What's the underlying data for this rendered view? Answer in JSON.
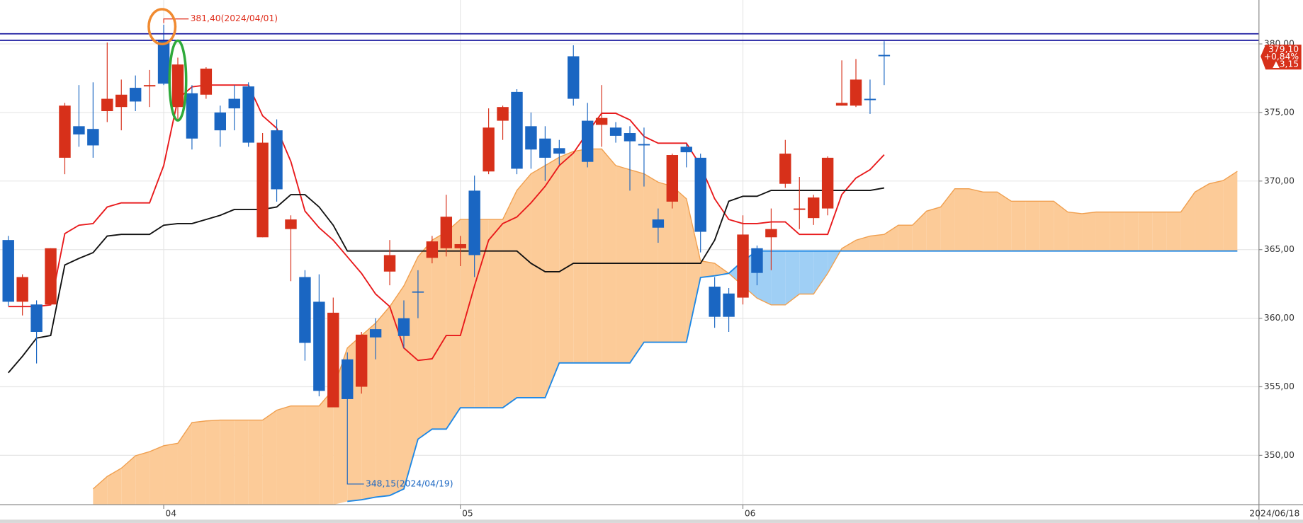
{
  "chart_data": {
    "type": "candlestick",
    "categories": [
      null,
      null,
      null,
      null,
      null,
      null,
      null,
      null,
      null,
      null,
      null,
      "04",
      null,
      null,
      null,
      null,
      null,
      null,
      null,
      null,
      null,
      null,
      null,
      null,
      null,
      null,
      null,
      null,
      null,
      null,
      null,
      null,
      "05",
      null,
      null,
      null,
      null,
      null,
      null,
      null,
      null,
      null,
      null,
      null,
      null,
      null,
      null,
      null,
      null,
      null,
      null,
      null,
      "06",
      null,
      null,
      null,
      null,
      null,
      null,
      null,
      null,
      null,
      null,
      null,
      null,
      null,
      null,
      null,
      null,
      null,
      null,
      null,
      null,
      null,
      null,
      null,
      null,
      null,
      null,
      null,
      null,
      null,
      null,
      null,
      null,
      null,
      null,
      null
    ],
    "open": [
      365.7,
      361.2,
      361.0,
      361.0,
      371.7,
      374.0,
      373.8,
      375.1,
      375.4,
      376.8,
      376.9,
      380.3,
      375.4,
      376.4,
      376.3,
      375.0,
      376.0,
      376.9,
      365.9,
      373.7,
      366.5,
      363.0,
      361.2,
      353.5,
      357.0,
      355.0,
      359.2,
      363.4,
      360.0,
      361.95,
      364.4,
      365.1,
      365.1,
      369.3,
      370.7,
      374.4,
      376.5,
      374.0,
      373.1,
      372.4,
      379.1,
      374.4,
      374.1,
      373.9,
      373.5,
      372.7,
      367.2,
      368.5,
      372.5,
      371.7,
      362.3,
      361.8,
      361.5,
      365.1,
      365.9,
      369.8,
      367.9,
      367.3,
      368.0,
      375.5,
      375.5,
      376.0,
      379.2,
      null,
      null,
      null,
      null,
      null,
      null,
      null,
      null,
      null,
      null,
      null,
      null,
      null,
      null,
      null,
      null,
      null,
      null,
      null,
      null,
      null,
      null,
      null,
      null,
      null
    ],
    "high": [
      366.0,
      363.2,
      361.3,
      365.1,
      375.7,
      377.0,
      377.2,
      380.1,
      377.4,
      377.7,
      378.1,
      381.4,
      379.0,
      377.0,
      378.3,
      375.5,
      377.0,
      377.2,
      373.5,
      374.5,
      367.5,
      363.5,
      363.2,
      361.5,
      357.5,
      359.0,
      360.0,
      365.7,
      361.3,
      363.5,
      366.0,
      369.0,
      366.0,
      370.4,
      375.3,
      375.5,
      376.7,
      375.0,
      374.0,
      373.0,
      379.9,
      375.7,
      377.0,
      374.3,
      374.0,
      373.9,
      368.0,
      372.0,
      372.7,
      372.0,
      363.0,
      362.2,
      367.5,
      365.3,
      368.0,
      373.0,
      370.3,
      369.0,
      371.8,
      378.8,
      378.9,
      377.4,
      380.2,
      null,
      null,
      null,
      null,
      null,
      null,
      null,
      null,
      null,
      null,
      null,
      null,
      null,
      null,
      null,
      null,
      null,
      null,
      null,
      null,
      null,
      null,
      null,
      null,
      null
    ],
    "low": [
      360.9,
      360.2,
      356.7,
      361.0,
      370.5,
      372.5,
      371.7,
      374.3,
      373.7,
      375.1,
      375.4,
      377.0,
      374.5,
      372.3,
      376.0,
      372.5,
      373.7,
      372.5,
      365.9,
      368.5,
      362.7,
      356.9,
      354.3,
      353.5,
      348.15,
      354.5,
      357.0,
      362.4,
      357.8,
      360.0,
      364.0,
      364.5,
      363.8,
      363.0,
      370.5,
      373.0,
      370.5,
      370.9,
      370.0,
      371.2,
      375.5,
      371.0,
      372.5,
      372.8,
      369.3,
      369.6,
      365.5,
      368.0,
      371.0,
      364.8,
      359.3,
      359.0,
      361.0,
      362.4,
      363.5,
      369.5,
      366.5,
      366.8,
      367.5,
      375.5,
      375.4,
      374.9,
      377.0,
      null,
      null,
      null,
      null,
      null,
      null,
      null,
      null,
      null,
      null,
      null,
      null,
      null,
      null,
      null,
      null,
      null,
      null,
      null,
      null,
      null,
      null,
      null,
      null,
      null
    ],
    "close": [
      361.2,
      363.0,
      359.0,
      365.1,
      375.5,
      373.4,
      372.6,
      376.0,
      376.3,
      375.8,
      377.0,
      377.1,
      378.5,
      373.1,
      378.2,
      373.7,
      375.3,
      372.8,
      372.8,
      369.4,
      367.2,
      358.2,
      354.7,
      360.4,
      354.1,
      358.8,
      358.6,
      364.6,
      358.7,
      361.9,
      365.6,
      367.4,
      365.4,
      364.6,
      373.9,
      375.4,
      370.9,
      372.3,
      371.7,
      372.0,
      376.0,
      371.4,
      374.6,
      373.3,
      372.9,
      372.6,
      366.6,
      371.9,
      372.1,
      366.3,
      360.1,
      360.1,
      366.1,
      363.3,
      366.5,
      372.0,
      368.0,
      368.8,
      371.7,
      375.7,
      377.4,
      375.9,
      379.1,
      null,
      null,
      null,
      null,
      null,
      null,
      null,
      null,
      null,
      null,
      null,
      null,
      null,
      null,
      null,
      null,
      null,
      null,
      null,
      null,
      null,
      null,
      null,
      null,
      null
    ],
    "up_color": "#d7301a",
    "down_color": "#1a66c2",
    "lines": [
      {
        "color": "#e8191b",
        "values": [
          360.85,
          360.85,
          360.85,
          360.97,
          366.17,
          366.78,
          366.9,
          368.11,
          368.41,
          368.41,
          368.41,
          371.13,
          375.97,
          376.87,
          377.0,
          377.0,
          377.0,
          377.0,
          374.76,
          373.85,
          371.43,
          367.81,
          366.6,
          365.69,
          364.48,
          363.27,
          361.76,
          360.85,
          357.83,
          356.92,
          357.04,
          358.74,
          358.74,
          362.36,
          365.69,
          366.9,
          367.38,
          368.41,
          369.62,
          371.13,
          372.04,
          373.55,
          374.94,
          374.94,
          374.46,
          373.25,
          372.76,
          372.76,
          372.76,
          371.13,
          368.71,
          367.2,
          366.9,
          366.9,
          367.02,
          367.02,
          366.11,
          366.11,
          366.11,
          369.01,
          370.22,
          370.83,
          371.92,
          null,
          null,
          null,
          null,
          null,
          null,
          null,
          null,
          null,
          null,
          null,
          null,
          null,
          null,
          null,
          null,
          null,
          null,
          null,
          null,
          null,
          null,
          null,
          null,
          null
        ]
      },
      {
        "color": "#111111",
        "values": [
          356.02,
          357.22,
          358.55,
          358.74,
          363.88,
          364.36,
          364.78,
          365.99,
          366.11,
          366.11,
          366.11,
          366.78,
          366.9,
          366.9,
          367.2,
          367.5,
          367.93,
          367.93,
          367.93,
          368.11,
          369.01,
          369.01,
          368.11,
          366.78,
          364.9,
          364.9,
          364.9,
          364.9,
          364.9,
          364.9,
          364.9,
          364.9,
          364.9,
          364.9,
          364.9,
          364.9,
          364.9,
          364.0,
          363.39,
          363.39,
          364.0,
          364.0,
          364.0,
          364.0,
          364.0,
          364.0,
          364.0,
          364.0,
          364.0,
          364.0,
          365.69,
          368.53,
          368.89,
          368.89,
          369.32,
          369.32,
          369.32,
          369.32,
          369.32,
          369.32,
          369.32,
          369.32,
          369.5,
          null,
          null,
          null,
          null,
          null,
          null,
          null,
          null,
          null,
          null,
          null,
          null,
          null,
          null,
          null,
          null,
          null,
          null,
          null,
          null,
          null,
          null,
          null,
          null,
          null
        ]
      }
    ],
    "cloud": {
      "span_a": {
        "color": "#f0a050",
        "values": [
          null,
          null,
          null,
          null,
          null,
          null,
          347.55,
          348.46,
          349.06,
          349.97,
          350.27,
          350.7,
          350.88,
          352.39,
          352.51,
          352.57,
          352.57,
          352.57,
          352.57,
          353.29,
          353.6,
          353.6,
          353.6,
          354.81,
          357.83,
          358.74,
          359.64,
          360.85,
          362.36,
          364.48,
          365.69,
          366.29,
          367.2,
          367.2,
          367.2,
          367.2,
          369.32,
          370.53,
          371.13,
          371.74,
          372.16,
          372.34,
          372.34,
          371.13,
          370.83,
          370.53,
          369.92,
          369.62,
          368.71,
          364.18,
          364.0,
          363.27,
          362.36,
          361.46,
          360.97,
          360.97,
          361.76,
          361.76,
          363.27,
          365.08,
          365.69,
          365.99,
          366.11,
          366.78,
          366.78,
          367.81,
          368.11,
          369.44,
          369.44,
          369.2,
          369.2,
          368.53,
          368.53,
          368.53,
          368.53,
          367.74,
          367.62,
          367.74,
          367.74,
          367.74,
          367.74,
          367.74,
          367.74,
          367.74,
          369.2,
          369.8,
          370.04,
          370.71
        ]
      },
      "span_b": {
        "color": "#1e88e5",
        "values": [
          null,
          null,
          null,
          null,
          null,
          null,
          null,
          null,
          null,
          null,
          null,
          null,
          null,
          null,
          null,
          null,
          null,
          null,
          null,
          null,
          null,
          null,
          null,
          null,
          346.64,
          346.76,
          346.95,
          347.07,
          347.55,
          351.18,
          351.91,
          351.91,
          353.47,
          353.47,
          353.47,
          353.47,
          354.2,
          354.2,
          354.2,
          356.74,
          356.74,
          356.74,
          356.74,
          356.74,
          356.74,
          358.25,
          358.25,
          358.25,
          358.25,
          362.97,
          363.09,
          363.27,
          364.18,
          364.9,
          364.9,
          364.9,
          364.9,
          364.9,
          364.9,
          364.9,
          364.9,
          364.9,
          364.9,
          364.9,
          364.9,
          364.9,
          364.9,
          364.9,
          364.9,
          364.9,
          364.9,
          364.9,
          364.9,
          364.9,
          364.9,
          364.9,
          364.9,
          364.9,
          364.9,
          364.9,
          364.9,
          364.9,
          364.9,
          364.9,
          364.9,
          364.9,
          364.9,
          364.9
        ]
      },
      "fill_above": "#fccb98",
      "fill_below": "#9fcff5"
    },
    "hlines": [
      {
        "value": 380.74,
        "color": "#1c1ca0"
      },
      {
        "value": 380.26,
        "color": "#1c1ca0"
      }
    ],
    "high_label": {
      "value": 381.4,
      "label": "381,40(2024/04/01)",
      "color": "#e0301e"
    },
    "low_label": {
      "value": 348.15,
      "label": "348,15(2024/04/19)",
      "color": "#1a66c2"
    },
    "price_tag": {
      "value": 379.1,
      "label": "379,10",
      "change": "+0,84%",
      "diff": "▲3,15",
      "color": "#d7301a"
    },
    "date_label": "2024/06/18",
    "ylim": [
      346.4,
      383.2
    ],
    "yticks": [
      {
        "value": 350,
        "label": "350,00"
      },
      {
        "value": 355,
        "label": "355,00"
      },
      {
        "value": 360,
        "label": "360,00"
      },
      {
        "value": 365,
        "label": "365,00"
      },
      {
        "value": 370,
        "label": "370,00"
      },
      {
        "value": 375,
        "label": "375,00"
      },
      {
        "value": 380,
        "label": "380,00"
      }
    ],
    "grid": true
  }
}
